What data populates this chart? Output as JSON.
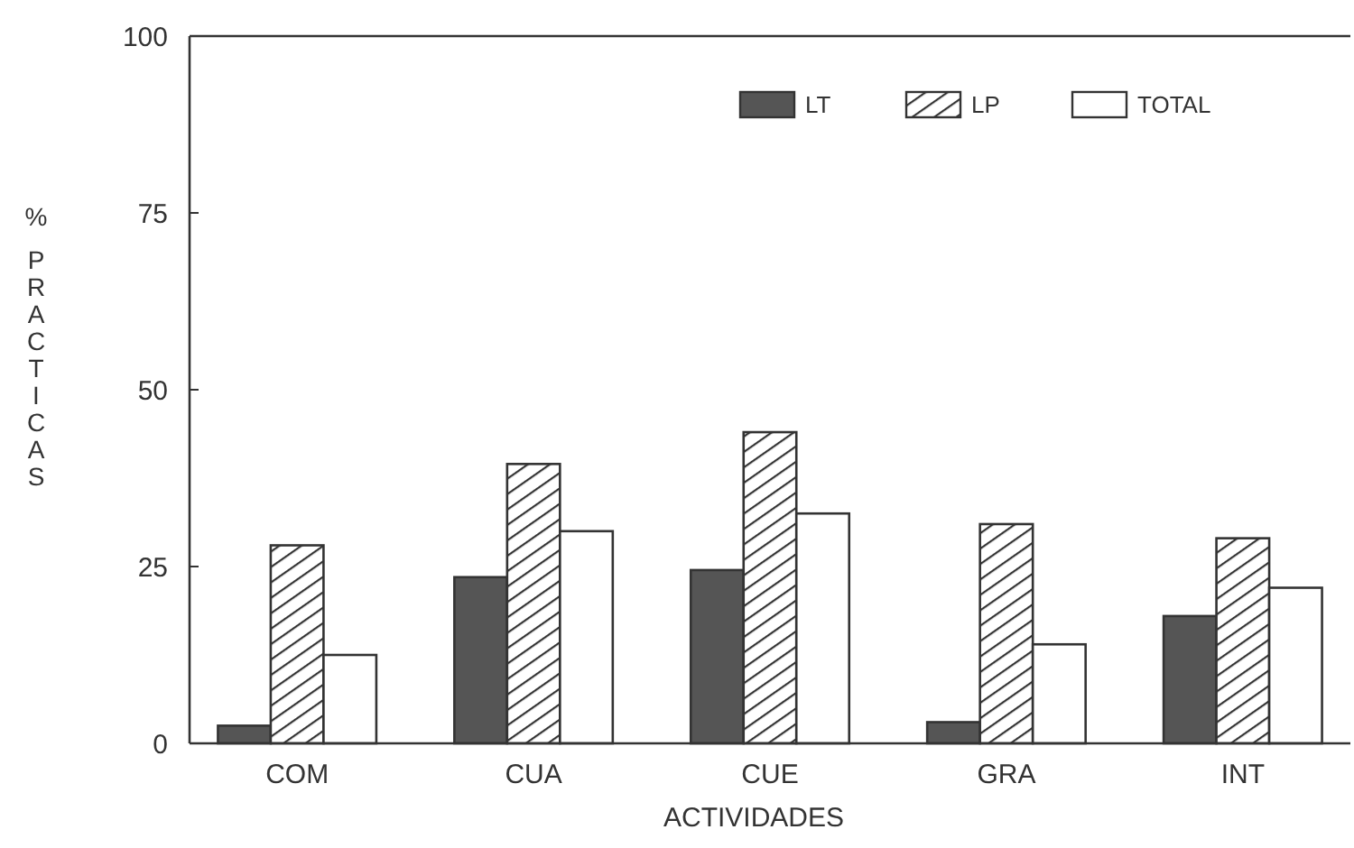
{
  "chart_data": {
    "type": "bar",
    "xlabel": "ACTIVIDADES",
    "ylabel": "% PRACTICAS",
    "categories": [
      "COM",
      "CUA",
      "CUE",
      "GRA",
      "INT"
    ],
    "series": [
      {
        "name": "LT",
        "color": "#555555",
        "values": [
          2.5,
          23.5,
          24.5,
          3,
          18
        ]
      },
      {
        "name": "LP",
        "color": "#333333",
        "values": [
          28,
          39.5,
          44,
          31,
          29
        ]
      },
      {
        "name": "TOTAL",
        "color": "#ffffff",
        "values": [
          12.5,
          30,
          32.5,
          14,
          22
        ]
      }
    ],
    "ylim": [
      0,
      100
    ],
    "yticks": [
      0,
      25,
      50,
      75,
      100
    ],
    "grid": false,
    "legend": "top right"
  }
}
